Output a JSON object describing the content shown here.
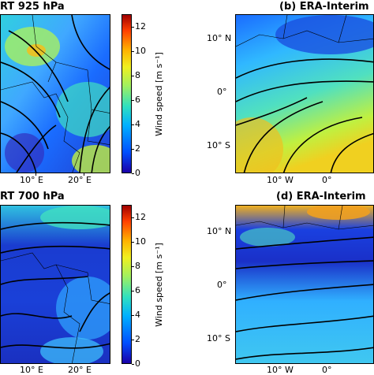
{
  "panels": {
    "a": {
      "title": "RT 925 hPa"
    },
    "b": {
      "title": "(b) ERA-Interim"
    },
    "c": {
      "title": "RT 700 hPa"
    },
    "d": {
      "title": "(d) ERA-Interim"
    }
  },
  "colorbar": {
    "label": "Wind speed [m s⁻¹]",
    "ticks": [
      "0",
      "2",
      "4",
      "6",
      "8",
      "10",
      "12"
    ],
    "colors": [
      "#1a00a8",
      "#0050ff",
      "#00b0ff",
      "#30e0c0",
      "#a0f060",
      "#f0f020",
      "#ffb000",
      "#ff4000",
      "#a00000"
    ]
  },
  "axes": {
    "a_c_lon_ticks": [
      "10° E",
      "20° E"
    ],
    "b_d_lon_ticks": [
      "10° W",
      "0°"
    ],
    "b_d_lat_ticks": [
      "10° N",
      "0°",
      "10° S"
    ]
  }
}
